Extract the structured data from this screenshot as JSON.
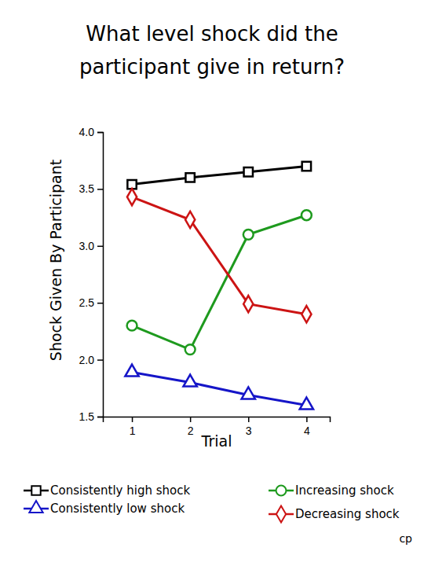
{
  "chart_data": {
    "type": "line",
    "title": "What level shock did the participant give in return?",
    "x_label": "Trial",
    "y_label": "Shock Given By Participant",
    "x": [
      1,
      2,
      3,
      4
    ],
    "xlim": [
      0.5,
      4.4
    ],
    "xticks": [
      1,
      2,
      3,
      4
    ],
    "ylim": [
      1.5,
      4.0
    ],
    "yticks": [
      1.5,
      {
        "value": 2,
        "label": "2.0"
      },
      2.5,
      {
        "value": 3,
        "label": "3.0"
      },
      3.5,
      {
        "value": 4,
        "label": "4.0"
      }
    ],
    "grid": false,
    "legend": "bottom",
    "annotations": [
      "cp"
    ],
    "series": [
      {
        "name": "Consistently high shock",
        "color": "#000000",
        "marker": "square",
        "values": [
          3.54,
          3.6,
          3.65,
          3.7
        ]
      },
      {
        "name": "Consistently low shock",
        "color": "#1515c8",
        "marker": "triangle",
        "values": [
          1.89,
          1.8,
          1.69,
          1.6
        ]
      },
      {
        "name": "Increasing shock",
        "color": "#1e9a1e",
        "marker": "circle",
        "values": [
          2.3,
          2.09,
          3.1,
          3.27
        ]
      },
      {
        "name": "Decreasing shock",
        "color": "#cc1414",
        "marker": "diamond",
        "values": [
          3.43,
          3.23,
          2.49,
          2.4
        ]
      }
    ]
  }
}
